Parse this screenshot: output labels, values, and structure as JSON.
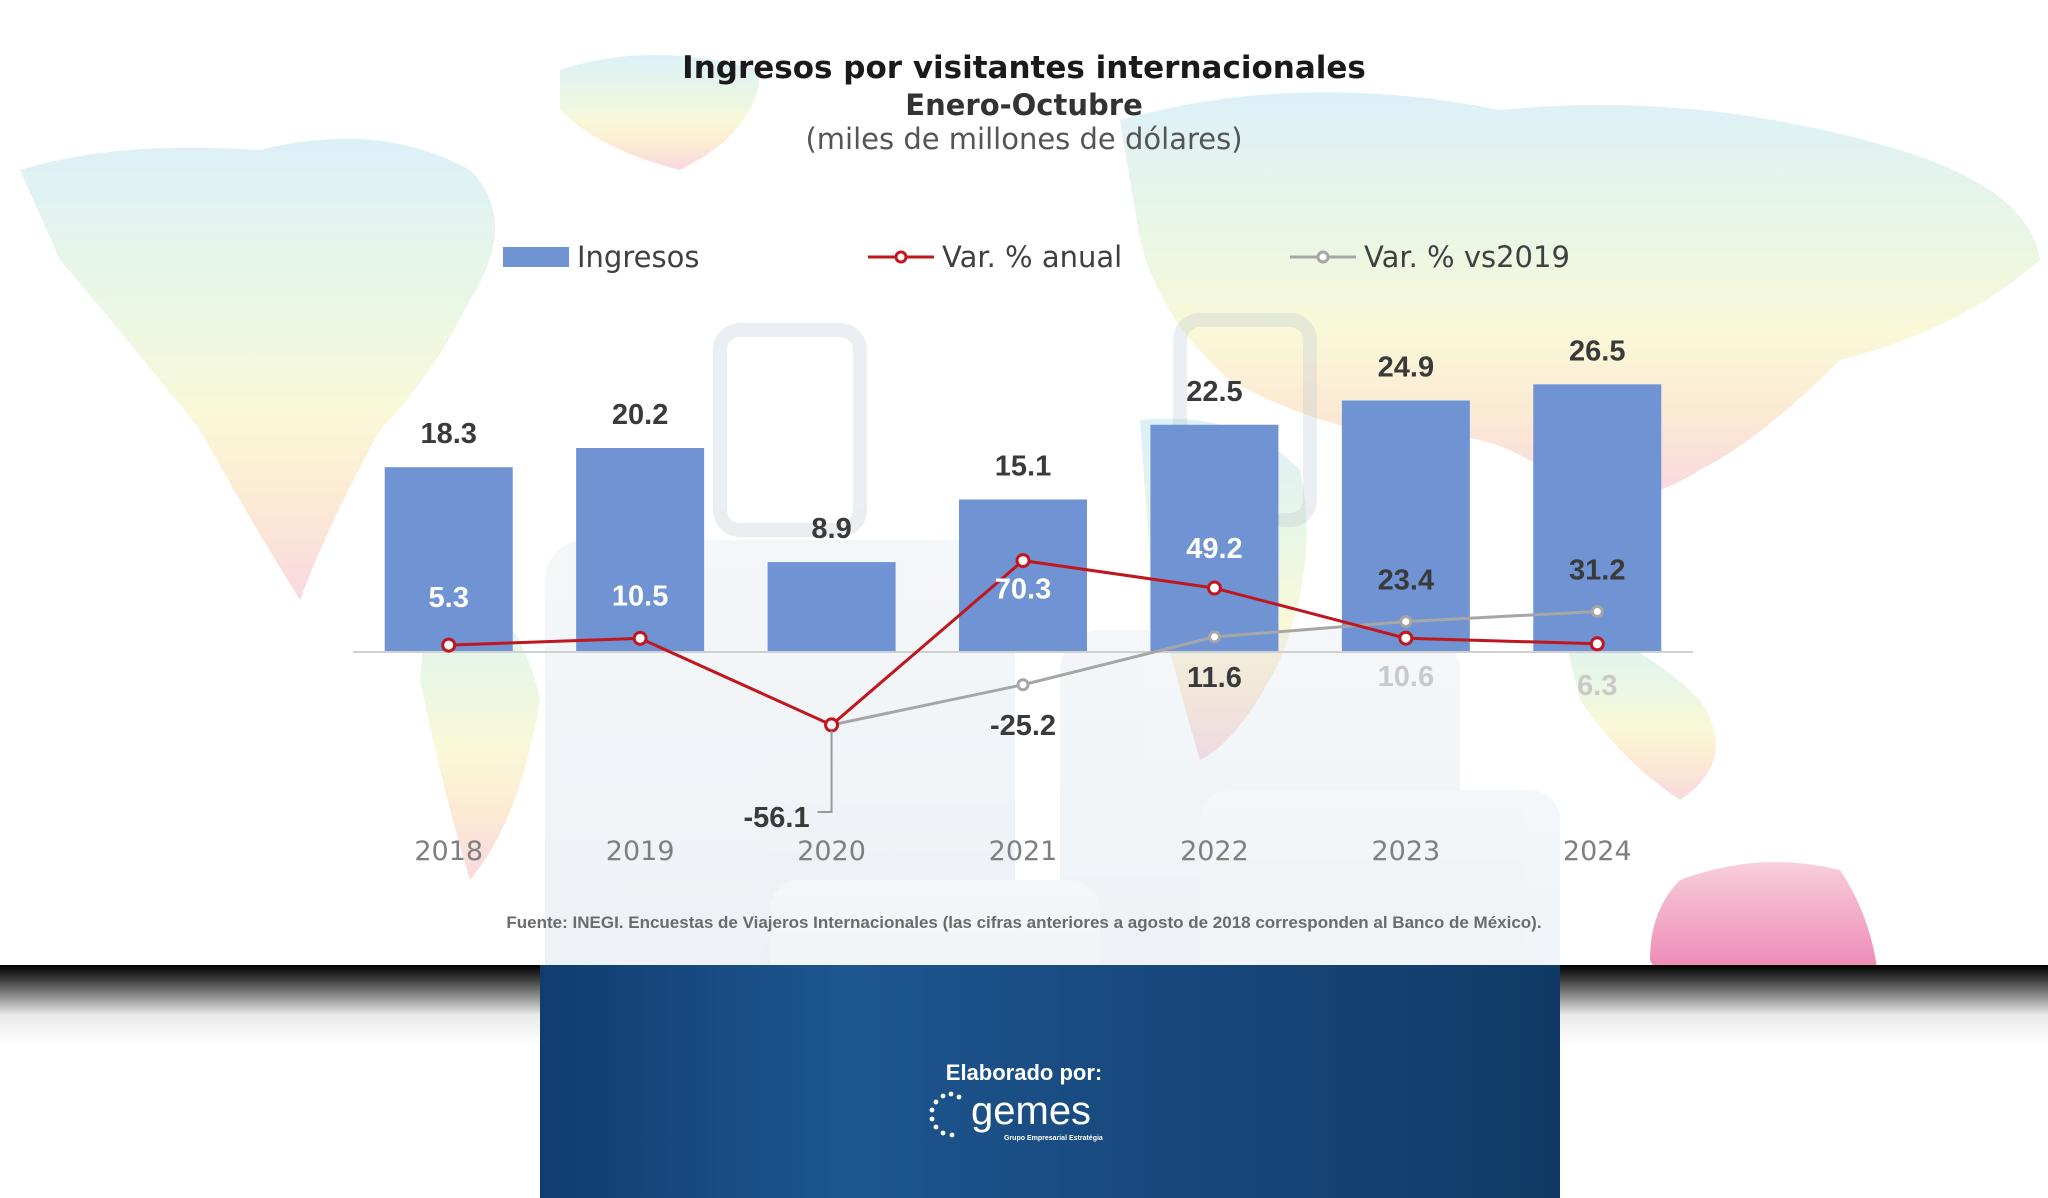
{
  "title": "Ingresos por visitantes internacionales",
  "subtitle": "Enero-Octubre",
  "units": "(miles de millones de dólares)",
  "legend": {
    "ingresos": "Ingresos",
    "anual": "Var. % anual",
    "vs2019": "Var. % vs2019"
  },
  "colors": {
    "bars": "#6f93d3",
    "anual": "#c0161e",
    "vs2019": "#a6a6a6"
  },
  "source": "Fuente: INEGI. Encuestas de Viajeros Internacionales (las cifras anteriores a agosto de 2018 corresponden al Banco de México).",
  "footer": {
    "credit_label": "Elaborado por:",
    "logo_text": "gemes",
    "logo_tagline": "Grupo Empresarial Estratégia"
  },
  "chart_data": {
    "type": "bar",
    "categories": [
      "2018",
      "2019",
      "2020",
      "2021",
      "2022",
      "2023",
      "2024"
    ],
    "series": [
      {
        "name": "Ingresos",
        "type": "bar",
        "values": [
          18.3,
          20.2,
          8.9,
          15.1,
          22.5,
          24.9,
          26.5
        ]
      },
      {
        "name": "Var. % anual",
        "type": "line",
        "values": [
          5.3,
          10.5,
          -56.1,
          70.3,
          49.2,
          10.6,
          6.3
        ]
      },
      {
        "name": "Var. % vs2019",
        "type": "line",
        "values": [
          null,
          null,
          -56.1,
          -25.2,
          11.6,
          23.4,
          31.2
        ]
      }
    ],
    "title": "Ingresos por visitantes internacionales",
    "legend_position": "top",
    "grid": false
  }
}
